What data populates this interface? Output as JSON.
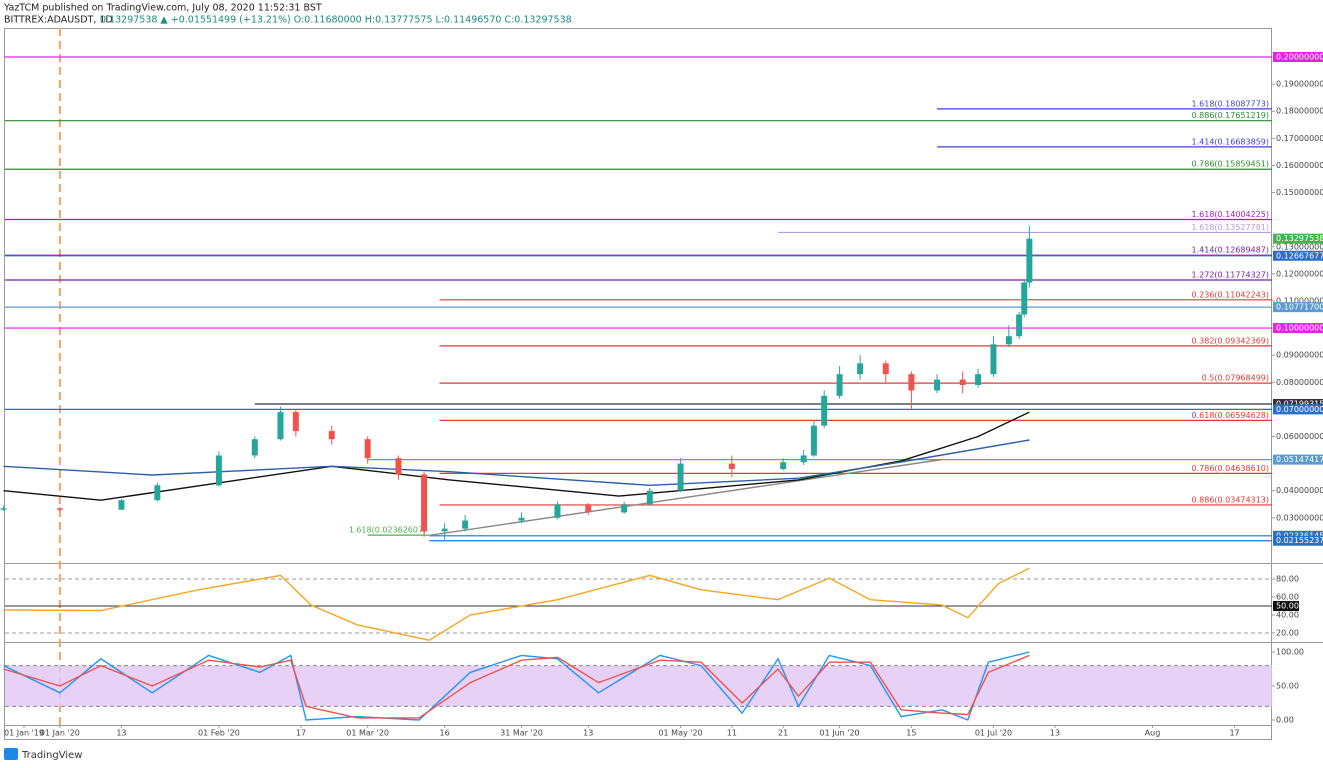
{
  "header": {
    "publisher": "YazTCM published on TradingView.com, July 08, 2020 11:52:31 BST",
    "symbol": "BITTREX:ADAUSDT, 1D",
    "quote": "0.13297538 ▲ +0.01551499 (+13.21%) O:0.11680000 H:0.13777575 L:0.11496570 C:0.13297538"
  },
  "footer": "TradingView",
  "chart_data": [
    {
      "type": "candlestick",
      "xlim": [
        -10.7,
        236.3
      ],
      "ylim": [
        0.0137,
        0.2107
      ],
      "marker_x": 0,
      "yticks": [
        {
          "value": 0.03,
          "label": "0.03000000"
        },
        {
          "value": 0.04,
          "label": "0.04000000"
        },
        {
          "value": 0.06,
          "label": "0.06000000"
        },
        {
          "value": 0.08,
          "label": "0.08000000"
        },
        {
          "value": 0.09,
          "label": "0.09000000"
        },
        {
          "value": 0.11,
          "label": "0.11000000"
        },
        {
          "value": 0.12,
          "label": "0.12000000"
        },
        {
          "value": 0.13,
          "label": "0.13000000"
        },
        {
          "value": 0.15,
          "label": "0.15000000"
        },
        {
          "value": 0.16,
          "label": "0.16000000"
        },
        {
          "value": 0.17,
          "label": "0.17000000"
        },
        {
          "value": 0.18,
          "label": "0.18000000"
        },
        {
          "value": 0.19,
          "label": "0.19000000"
        }
      ],
      "candles": [
        {
          "x": -11,
          "open": 0.033,
          "high": 0.0345,
          "low": 0.0325,
          "close": 0.0335
        },
        {
          "x": 0,
          "open": 0.0335,
          "high": 0.034,
          "low": 0.0322,
          "close": 0.033
        },
        {
          "x": 12,
          "open": 0.033,
          "high": 0.037,
          "low": 0.0328,
          "close": 0.0365
        },
        {
          "x": 19,
          "open": 0.0365,
          "high": 0.043,
          "low": 0.036,
          "close": 0.042
        },
        {
          "x": 31,
          "open": 0.042,
          "high": 0.0545,
          "low": 0.0415,
          "close": 0.053
        },
        {
          "x": 38,
          "open": 0.053,
          "high": 0.06,
          "low": 0.052,
          "close": 0.059
        },
        {
          "x": 43,
          "open": 0.059,
          "high": 0.071,
          "low": 0.0585,
          "close": 0.069
        },
        {
          "x": 46,
          "open": 0.069,
          "high": 0.07,
          "low": 0.06,
          "close": 0.062
        },
        {
          "x": 53,
          "open": 0.062,
          "high": 0.064,
          "low": 0.057,
          "close": 0.059
        },
        {
          "x": 60,
          "open": 0.059,
          "high": 0.06,
          "low": 0.05,
          "close": 0.052
        },
        {
          "x": 66,
          "open": 0.052,
          "high": 0.053,
          "low": 0.044,
          "close": 0.046
        },
        {
          "x": 71,
          "open": 0.046,
          "high": 0.047,
          "low": 0.023,
          "close": 0.025
        },
        {
          "x": 75,
          "open": 0.025,
          "high": 0.028,
          "low": 0.0215,
          "close": 0.026
        },
        {
          "x": 79,
          "open": 0.026,
          "high": 0.031,
          "low": 0.025,
          "close": 0.029
        },
        {
          "x": 90,
          "open": 0.029,
          "high": 0.032,
          "low": 0.028,
          "close": 0.03
        },
        {
          "x": 97,
          "open": 0.03,
          "high": 0.036,
          "low": 0.0295,
          "close": 0.035
        },
        {
          "x": 103,
          "open": 0.035,
          "high": 0.0355,
          "low": 0.031,
          "close": 0.032
        },
        {
          "x": 110,
          "open": 0.032,
          "high": 0.036,
          "low": 0.0315,
          "close": 0.035
        },
        {
          "x": 115,
          "open": 0.035,
          "high": 0.041,
          "low": 0.0345,
          "close": 0.04
        },
        {
          "x": 121,
          "open": 0.04,
          "high": 0.052,
          "low": 0.0395,
          "close": 0.05
        },
        {
          "x": 131,
          "open": 0.05,
          "high": 0.053,
          "low": 0.045,
          "close": 0.048
        },
        {
          "x": 141,
          "open": 0.048,
          "high": 0.052,
          "low": 0.0475,
          "close": 0.0505
        },
        {
          "x": 145,
          "open": 0.0505,
          "high": 0.055,
          "low": 0.0495,
          "close": 0.053
        },
        {
          "x": 147,
          "open": 0.053,
          "high": 0.066,
          "low": 0.0525,
          "close": 0.064
        },
        {
          "x": 149,
          "open": 0.064,
          "high": 0.077,
          "low": 0.063,
          "close": 0.075
        },
        {
          "x": 152,
          "open": 0.075,
          "high": 0.086,
          "low": 0.074,
          "close": 0.083
        },
        {
          "x": 156,
          "open": 0.083,
          "high": 0.09,
          "low": 0.081,
          "close": 0.087
        },
        {
          "x": 161,
          "open": 0.087,
          "high": 0.088,
          "low": 0.08,
          "close": 0.083
        },
        {
          "x": 166,
          "open": 0.083,
          "high": 0.084,
          "low": 0.07,
          "close": 0.077
        },
        {
          "x": 171,
          "open": 0.077,
          "high": 0.083,
          "low": 0.076,
          "close": 0.081
        },
        {
          "x": 176,
          "open": 0.081,
          "high": 0.084,
          "low": 0.076,
          "close": 0.079
        },
        {
          "x": 179,
          "open": 0.079,
          "high": 0.085,
          "low": 0.078,
          "close": 0.083
        },
        {
          "x": 182,
          "open": 0.083,
          "high": 0.097,
          "low": 0.082,
          "close": 0.094
        },
        {
          "x": 185,
          "open": 0.094,
          "high": 0.101,
          "low": 0.093,
          "close": 0.097
        },
        {
          "x": 187,
          "open": 0.097,
          "high": 0.106,
          "low": 0.096,
          "close": 0.105
        },
        {
          "x": 188,
          "open": 0.105,
          "high": 0.118,
          "low": 0.104,
          "close": 0.1168
        },
        {
          "x": 189,
          "open": 0.1168,
          "high": 0.13777575,
          "low": 0.1149657,
          "close": 0.13297538
        }
      ],
      "series": [
        {
          "color": "#111111",
          "x": [
            -11,
            8,
            53,
            76,
            109,
            144,
            164,
            179,
            189
          ],
          "values": [
            0.04,
            0.0365,
            0.049,
            0.044,
            0.038,
            0.044,
            0.051,
            0.06,
            0.069
          ]
        },
        {
          "color": "#2f5fa7",
          "x": [
            -11,
            18,
            53,
            76,
            115,
            144,
            164,
            189
          ],
          "values": [
            0.049,
            0.0458,
            0.049,
            0.047,
            0.042,
            0.0446,
            0.0506,
            0.0587
          ]
        }
      ],
      "trendlines": [
        {
          "color": "#888888",
          "x": [
            72,
            172
          ],
          "values": [
            0.0235,
            0.0515
          ]
        }
      ],
      "levels": [
        {
          "value": 0.2,
          "color": "#e91ee9",
          "axis_label": "0.20000000"
        },
        {
          "value": 0.18087773,
          "color": "#3f3fd0",
          "from": 171,
          "label": "1.618(0.18087773)"
        },
        {
          "value": 0.17651219,
          "color": "#2e8b2e",
          "label": "0.886(0.17651219)"
        },
        {
          "value": 0.16683859,
          "color": "#3f3fd0",
          "from": 171,
          "label": "1.414(0.16683859)"
        },
        {
          "value": 0.15859451,
          "color": "#2e8b2e",
          "label": "0.786(0.15859451)"
        },
        {
          "value": 0.14004225,
          "color": "#9c27b0",
          "label": "1.618(0.14004225)"
        },
        {
          "value": 0.13527781,
          "color": "#b39ddb",
          "from": 140,
          "label": "1.618(0.13527781)"
        },
        {
          "value": 0.13297538,
          "color": "#4caf50",
          "line": false,
          "axis_label": "0.13297538"
        },
        {
          "value": 0.12689487,
          "color": "#7b1fa2",
          "label": "1.414(0.12689487)"
        },
        {
          "value": 0.12667677,
          "color": "#2a6fc9",
          "axis_label": "0.12667677"
        },
        {
          "value": 0.11774327,
          "color": "#7b1fa2",
          "label": "1.272(0.11774327)"
        },
        {
          "value": 0.11042243,
          "color": "#e53935",
          "from": 74,
          "label": "0.236(0.11042243)"
        },
        {
          "value": 0.107717,
          "color": "#5b9bd5",
          "axis_label": "0.10771700"
        },
        {
          "value": 0.1,
          "color": "#e91ee9",
          "axis_label": "0.10000000"
        },
        {
          "value": 0.09342369,
          "color": "#e53935",
          "from": 74,
          "label": "0.382(0.09342369)"
        },
        {
          "value": 0.07968499,
          "color": "#e53935",
          "from": 74,
          "label": "0.5(0.07968499)"
        },
        {
          "value": 0.07199315,
          "color": "#333333",
          "from": 38,
          "axis_label": "0.07199315"
        },
        {
          "value": 0.07,
          "color": "#2a6fc9",
          "axis_label": "0.07000000"
        },
        {
          "value": 0.06594628,
          "color": "#e53935",
          "from": 74,
          "label": "0.618(0.06594628)"
        },
        {
          "value": 0.05147417,
          "color": "#5b9bd5",
          "from": 60,
          "axis_label": "0.05147417"
        },
        {
          "value": 0.0463861,
          "color": "#e53935",
          "from": 74,
          "label": "0.786(0.04638610)"
        },
        {
          "value": 0.03474313,
          "color": "#e53935",
          "from": 74,
          "label": "0.886(0.03474313)"
        },
        {
          "value": 0.02362607,
          "color": "#4caf50",
          "from": 60,
          "to": 72,
          "label": "1.618(0.02362607)"
        },
        {
          "value": 0.02336145,
          "color": "#2a6fc9",
          "from": 72,
          "axis_label": "0.02336145"
        },
        {
          "value": 0.02155237,
          "color": "#2a6fc9",
          "from": 72,
          "axis_label": "0.02155237"
        }
      ]
    },
    {
      "type": "line",
      "xlim": [
        -10.7,
        236.3
      ],
      "ylim": [
        12.2,
        95.6
      ],
      "yticks": [
        {
          "value": 20,
          "label": "20.00"
        },
        {
          "value": 40,
          "label": "40.00"
        },
        {
          "value": 60,
          "label": "60.00"
        },
        {
          "value": 80,
          "label": "80.00"
        }
      ],
      "dashed_levels": [
        80,
        20
      ],
      "mid_line": {
        "value": 50,
        "label": "50.00"
      },
      "series": [
        {
          "color": "#f5a623",
          "x": [
            -11,
            8,
            27,
            43,
            49,
            58,
            72,
            80,
            97,
            115,
            125,
            140,
            150,
            158,
            172,
            177,
            183,
            189
          ],
          "values": [
            45.6,
            45,
            68,
            84,
            51,
            29,
            12,
            40,
            57,
            84,
            68,
            57,
            81,
            57,
            51,
            37,
            75,
            92
          ]
        }
      ]
    },
    {
      "type": "line",
      "xlim": [
        -10.7,
        236.3
      ],
      "ylim": [
        -7.4,
        110.3
      ],
      "band": [
        20,
        80
      ],
      "yticks": [
        {
          "value": 0,
          "label": "0.00"
        },
        {
          "value": 50,
          "label": "50.00"
        },
        {
          "value": 100,
          "label": "100.00"
        }
      ],
      "xticks": [
        {
          "value": -7,
          "label": "01 Jan '19"
        },
        {
          "value": 0,
          "label": "01 Jan '20"
        },
        {
          "value": 12,
          "label": "13"
        },
        {
          "value": 31,
          "label": "01 Feb '20"
        },
        {
          "value": 47,
          "label": "17"
        },
        {
          "value": 60,
          "label": "01 Mar '20"
        },
        {
          "value": 75,
          "label": "16"
        },
        {
          "value": 90,
          "label": "31 Mar '20"
        },
        {
          "value": 103,
          "label": "13"
        },
        {
          "value": 121,
          "label": "01 May '20"
        },
        {
          "value": 131,
          "label": "11"
        },
        {
          "value": 141,
          "label": "21"
        },
        {
          "value": 152,
          "label": "01 Jun '20"
        },
        {
          "value": 166,
          "label": "15"
        },
        {
          "value": 182,
          "label": "01 Jul '20"
        },
        {
          "value": 194,
          "label": "13"
        },
        {
          "value": 213,
          "label": "Aug"
        },
        {
          "value": 229,
          "label": "17"
        }
      ],
      "series": [
        {
          "color": "#2196f3",
          "x": [
            -11,
            0,
            8,
            18,
            29,
            39,
            45,
            48,
            58,
            70,
            80,
            90,
            97,
            105,
            117,
            125,
            133,
            140,
            144,
            150,
            158,
            164,
            172,
            177,
            181,
            189
          ],
          "values": [
            80,
            40,
            90,
            40,
            95,
            70,
            95,
            0,
            5,
            0,
            70,
            95,
            90,
            40,
            95,
            80,
            10,
            90,
            20,
            95,
            80,
            5,
            15,
            0,
            85,
            100
          ]
        },
        {
          "color": "#ef5350",
          "x": [
            -11,
            0,
            8,
            18,
            29,
            39,
            45,
            48,
            58,
            70,
            80,
            90,
            97,
            105,
            117,
            125,
            133,
            140,
            144,
            150,
            158,
            164,
            172,
            177,
            181,
            189
          ],
          "values": [
            75,
            50,
            80,
            50,
            88,
            78,
            88,
            20,
            3,
            3,
            55,
            88,
            92,
            55,
            88,
            85,
            25,
            75,
            35,
            85,
            85,
            15,
            10,
            8,
            70,
            95
          ]
        }
      ]
    }
  ]
}
